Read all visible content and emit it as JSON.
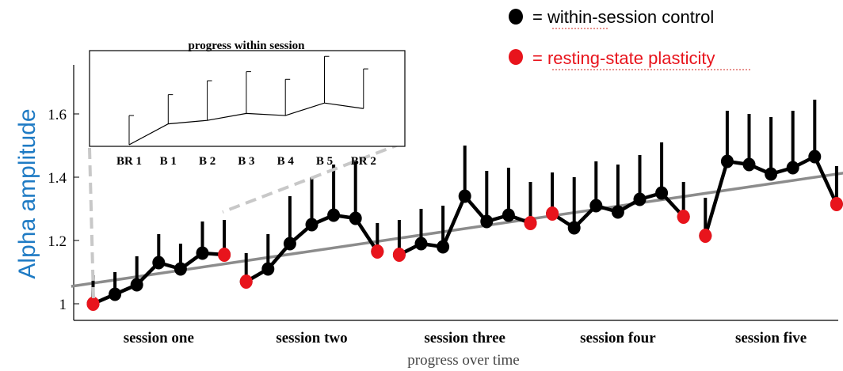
{
  "colors": {
    "control": "#000000",
    "plasticity": "#e8141c",
    "ylabel": "#1f7bc4",
    "trend": "#8c8c8c",
    "legend_underline": "#d9534f"
  },
  "legend": {
    "control_label": "= within-session control",
    "plasticity_label": "= resting-state plasticity"
  },
  "chart_data": [
    {
      "type": "line",
      "ylabel": "Alpha amplitude",
      "xlabel": "progress over time",
      "ylim": [
        0.95,
        1.75
      ],
      "yticks": [
        "1",
        "1.2",
        "1.4",
        "1.6"
      ],
      "sessions": [
        "session one",
        "session two",
        "session three",
        "session four",
        "session five"
      ],
      "series": [
        {
          "name": "within-session control",
          "segments": [
            {
              "x": [
                1,
                2,
                3,
                4,
                5,
                6,
                7
              ],
              "y": [
                1.0,
                1.03,
                1.06,
                1.13,
                1.11,
                1.16,
                1.155
              ],
              "err": [
                0.09,
                0.07,
                0.09,
                0.09,
                0.08,
                0.1,
                0.11
              ]
            },
            {
              "x": [
                8,
                9,
                10,
                11,
                12,
                13,
                14
              ],
              "y": [
                1.07,
                1.11,
                1.19,
                1.25,
                1.28,
                1.27,
                1.165
              ],
              "err": [
                0.09,
                0.11,
                0.15,
                0.15,
                0.16,
                0.18,
                0.09
              ]
            },
            {
              "x": [
                15,
                16,
                17,
                18,
                19,
                20,
                21
              ],
              "y": [
                1.155,
                1.19,
                1.18,
                1.34,
                1.26,
                1.28,
                1.255
              ],
              "err": [
                0.11,
                0.11,
                0.13,
                0.16,
                0.16,
                0.15,
                0.13
              ]
            },
            {
              "x": [
                22,
                23,
                24,
                25,
                26,
                27,
                28
              ],
              "y": [
                1.285,
                1.24,
                1.31,
                1.29,
                1.33,
                1.35,
                1.275
              ],
              "err": [
                0.13,
                0.16,
                0.14,
                0.15,
                0.14,
                0.16,
                0.11
              ]
            },
            {
              "x": [
                29,
                30,
                31,
                32,
                33,
                34,
                35
              ],
              "y": [
                1.215,
                1.45,
                1.44,
                1.41,
                1.43,
                1.465,
                1.315
              ],
              "err": [
                0.12,
                0.16,
                0.16,
                0.18,
                0.18,
                0.18,
                0.12
              ]
            }
          ]
        },
        {
          "name": "resting-state plasticity",
          "x": [
            1,
            7,
            8,
            14,
            15,
            21,
            22,
            28,
            29,
            35
          ],
          "y": [
            1.0,
            1.155,
            1.07,
            1.165,
            1.155,
            1.255,
            1.285,
            1.275,
            1.215,
            1.315
          ]
        }
      ],
      "trend_line": {
        "x": [
          0,
          36
        ],
        "y": [
          1.055,
          1.42
        ]
      }
    },
    {
      "type": "line",
      "title": "progress within session",
      "categories": [
        "BR 1",
        "B 1",
        "B 2",
        "B 3",
        "B 4",
        "B 5",
        "BR 2"
      ],
      "values": [
        0.0,
        0.3,
        0.35,
        0.45,
        0.42,
        0.6,
        0.52
      ],
      "err": [
        0.42,
        0.42,
        0.57,
        0.6,
        0.52,
        0.67,
        0.57
      ],
      "ylim": [
        0,
        1.1
      ]
    }
  ]
}
